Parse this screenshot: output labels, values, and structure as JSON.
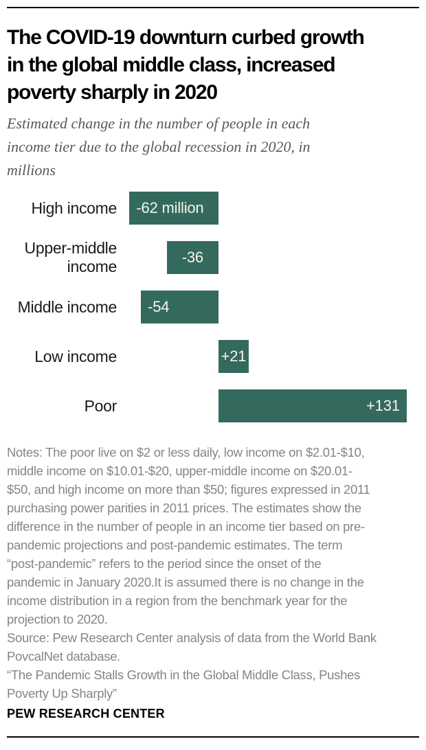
{
  "header": {
    "title_lines": [
      "The COVID-19 downturn curbed growth",
      "in the global middle class, increased",
      "poverty sharply in 2020"
    ],
    "subtitle_lines": [
      "Estimated change in the number of people in each",
      "income tier due to the global recession in 2020, in",
      "millions"
    ]
  },
  "chart_data": {
    "type": "bar",
    "orientation": "horizontal",
    "title": "Estimated change in the number of people in each income tier due to the global recession in 2020, in millions",
    "categories": [
      "High income",
      "Upper-middle income",
      "Middle income",
      "Low income",
      "Poor"
    ],
    "values": [
      -62,
      -36,
      -54,
      21,
      131
    ],
    "value_labels": [
      "-62 million",
      "-36",
      "-54",
      "+21",
      "+131"
    ],
    "unit": "millions of people",
    "axis": "none (zero baseline implied, no gridlines, no ticks)",
    "bar_color": "#346A5E",
    "value_label_color": "#F7F4E9"
  },
  "notes": {
    "lines": [
      "Notes: The poor live on $2 or less daily, low income on $2.01-$10,",
      "middle income on $10.01-$20, upper-middle income on $20.01-",
      "$50, and high income on more than $50; figures expressed in 2011",
      "purchasing power parities in 2011 prices. The estimates show the",
      "difference in the number of people in an income tier based on pre-",
      "pandemic projections and post-pandemic estimates. The term",
      "“post-pandemic” refers to the period since the onset of the",
      "pandemic in January 2020.It is assumed there is no change in the",
      "income distribution in a region from the benchmark year for the",
      "projection to 2020."
    ],
    "source_lines": [
      "Source: Pew Research Center analysis of data from the World Bank",
      "PovcalNet database."
    ],
    "quote_lines": [
      "“The Pandemic Stalls Growth in the Global Middle Class, Pushes",
      "Poverty Up Sharply”"
    ]
  },
  "footer": {
    "brand": "PEW RESEARCH CENTER"
  }
}
